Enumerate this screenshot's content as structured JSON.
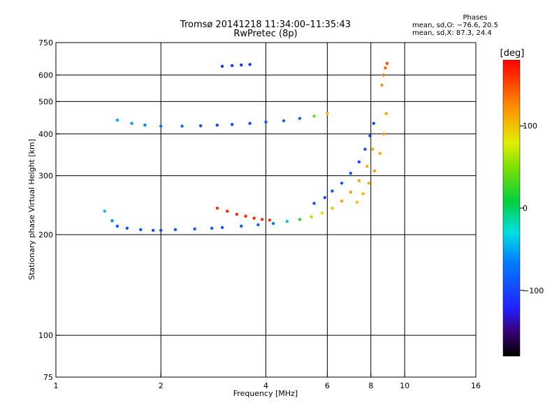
{
  "header": {
    "title_line1": "Tromsø 20141218 11:34:00–11:35:43",
    "title_line2": "RwPretec (8p)"
  },
  "phases": {
    "label": "Phases",
    "o_line": "mean, sd,O: −76.6, 20.5",
    "x_line": "mean, sd,X:  87.3, 24.4"
  },
  "colorbar": {
    "unit_label": "[deg]",
    "tick_labels": [
      "100",
      "0",
      "−100"
    ],
    "tick_values": [
      100,
      0,
      -100
    ],
    "range": [
      -180,
      180
    ],
    "colormap": "rainbow"
  },
  "chart_data": {
    "type": "scatter",
    "title": "Tromsø 20141218 11:34:00–11:35:43",
    "subtitle": "RwPretec (8p)",
    "xlabel": "Frequency [MHz]",
    "ylabel": "Stationary phase Virtual Height [km]",
    "xscale": "log",
    "yscale": "log",
    "xlim": [
      1,
      16
    ],
    "ylim": [
      75,
      750
    ],
    "x_ticks": [
      1,
      2,
      4,
      6,
      8,
      10,
      16
    ],
    "x_tick_labels": [
      "1",
      "2",
      "4",
      "6",
      "8",
      "10",
      "16"
    ],
    "y_ticks": [
      75,
      100,
      200,
      300,
      400,
      500,
      600,
      750
    ],
    "y_tick_labels": [
      "75",
      "100",
      "200",
      "300",
      "400",
      "500",
      "600",
      "750"
    ],
    "grid": true,
    "color_by": "phase [deg]",
    "series": [
      {
        "x": [
          1.38,
          1.45,
          1.5,
          1.6,
          1.75,
          1.9,
          2.0,
          2.2,
          2.5,
          2.8,
          3.0,
          3.4,
          3.8,
          4.2,
          4.6,
          5.0,
          5.4,
          5.8,
          6.2,
          6.6,
          7.0,
          7.4,
          7.8,
          8.1
        ],
        "y": [
          235,
          220,
          212,
          209,
          207,
          206,
          206,
          207,
          208,
          209,
          210,
          212,
          214,
          216,
          219,
          222,
          226,
          232,
          240,
          252,
          268,
          290,
          320,
          360
        ],
        "phase": [
          -40,
          -60,
          -90,
          -95,
          -95,
          -95,
          -95,
          -90,
          -90,
          -90,
          -88,
          -85,
          -80,
          -70,
          -40,
          20,
          60,
          85,
          100,
          110,
          112,
          112,
          110,
          108
        ]
      },
      {
        "x": [
          5.5,
          5.9,
          6.2,
          6.6,
          7.0,
          7.4,
          7.7,
          7.95,
          8.15
        ],
        "y": [
          248,
          258,
          270,
          285,
          305,
          330,
          360,
          395,
          430
        ],
        "phase": [
          -85,
          -90,
          -92,
          -92,
          -90,
          -95,
          -95,
          -100,
          -100
        ]
      },
      {
        "x": [
          7.3,
          7.6,
          7.9,
          8.2,
          8.5,
          8.7,
          8.85
        ],
        "y": [
          250,
          265,
          285,
          310,
          350,
          400,
          460
        ],
        "phase": [
          100,
          105,
          110,
          110,
          112,
          112,
          110
        ]
      },
      {
        "x": [
          2.9,
          3.1,
          3.3,
          3.5,
          3.7,
          3.9,
          4.1
        ],
        "y": [
          240,
          235,
          230,
          227,
          224,
          222,
          221
        ],
        "phase": [
          160,
          165,
          165,
          165,
          165,
          162,
          160
        ]
      },
      {
        "x": [
          1.5,
          1.65,
          1.8,
          2.0,
          2.3,
          2.6,
          2.9,
          3.2,
          3.6,
          4.0,
          4.5,
          5.0,
          5.5,
          6.0
        ],
        "y": [
          440,
          430,
          425,
          422,
          422,
          423,
          425,
          427,
          430,
          434,
          438,
          445,
          452,
          460
        ],
        "phase": [
          -50,
          -55,
          -60,
          -70,
          -75,
          -90,
          -95,
          -95,
          -95,
          -90,
          -85,
          -80,
          40,
          100
        ]
      },
      {
        "x": [
          3.0,
          3.2,
          3.4,
          3.6
        ],
        "y": [
          637,
          640,
          643,
          645
        ],
        "phase": [
          -110,
          -110,
          -110,
          -110
        ]
      },
      {
        "x": [
          8.6,
          8.7,
          8.8,
          8.9
        ],
        "y": [
          560,
          600,
          630,
          650
        ],
        "phase": [
          120,
          130,
          140,
          150
        ]
      }
    ]
  }
}
